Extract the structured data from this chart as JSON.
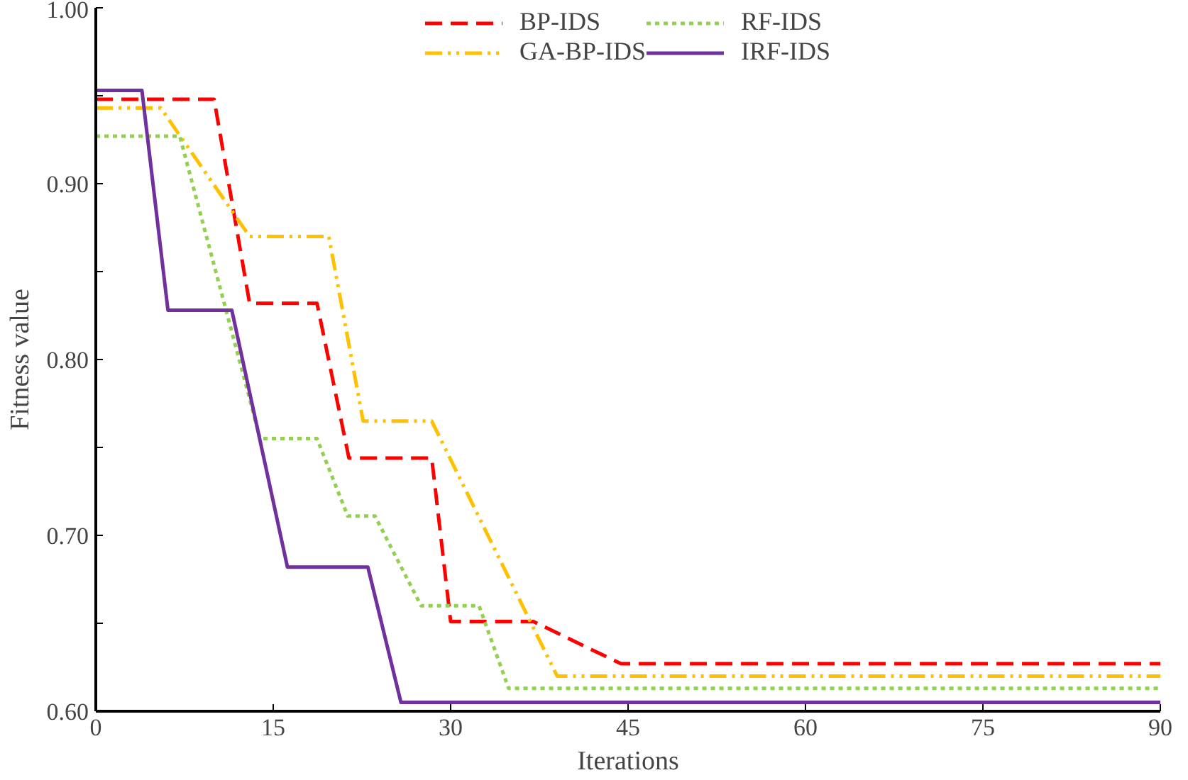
{
  "chart_data": {
    "type": "line",
    "xlabel": "Iterations",
    "ylabel": "Fitness value",
    "xlim": [
      0,
      90
    ],
    "xticks": [
      0,
      15,
      30,
      45,
      60,
      75,
      90
    ],
    "ylim": [
      0.6,
      1.0
    ],
    "yticks": [
      {
        "value": 0.6,
        "label": "0.60"
      },
      {
        "value": 0.65,
        "label": null
      },
      {
        "value": 0.7,
        "label": "0.70"
      },
      {
        "value": 0.75,
        "label": null
      },
      {
        "value": 0.8,
        "label": "0.80"
      },
      {
        "value": 0.85,
        "label": null
      },
      {
        "value": 0.9,
        "label": "0.90"
      },
      {
        "value": 0.95,
        "label": null
      },
      {
        "value": 1.0,
        "label": "1.00"
      }
    ],
    "grid": false,
    "legend": "top",
    "marker": "none",
    "series": [
      {
        "name": "BP-IDS",
        "color": "#ff0000",
        "line_style": "dashed",
        "x": [
          0,
          10,
          13,
          18.7,
          21.4,
          28.4,
          30,
          37,
          44.4,
          90
        ],
        "values": [
          0.948,
          0.948,
          0.832,
          0.832,
          0.744,
          0.744,
          0.651,
          0.651,
          0.627,
          0.627
        ]
      },
      {
        "name": "GA-BP-IDS",
        "color": "#ffc000",
        "line_style": "dashdot",
        "x": [
          0,
          5.5,
          13,
          19.7,
          22.6,
          28.4,
          39,
          90
        ],
        "values": [
          0.943,
          0.943,
          0.87,
          0.87,
          0.765,
          0.765,
          0.62,
          0.62
        ]
      },
      {
        "name": "RF-IDS",
        "color": "#92d050",
        "line_style": "dotted",
        "x": [
          0,
          7.1,
          13.9,
          18.7,
          21.3,
          23.6,
          27.5,
          32.4,
          34.9,
          90
        ],
        "values": [
          0.927,
          0.927,
          0.755,
          0.755,
          0.711,
          0.711,
          0.66,
          0.66,
          0.613,
          0.613
        ]
      },
      {
        "name": "IRF-IDS",
        "color": "#7030a0",
        "line_style": "solid",
        "x": [
          0,
          3.9,
          6.1,
          11.5,
          16.2,
          23,
          25.8,
          90
        ],
        "values": [
          0.953,
          0.953,
          0.828,
          0.828,
          0.682,
          0.682,
          0.605,
          0.605
        ]
      }
    ]
  }
}
